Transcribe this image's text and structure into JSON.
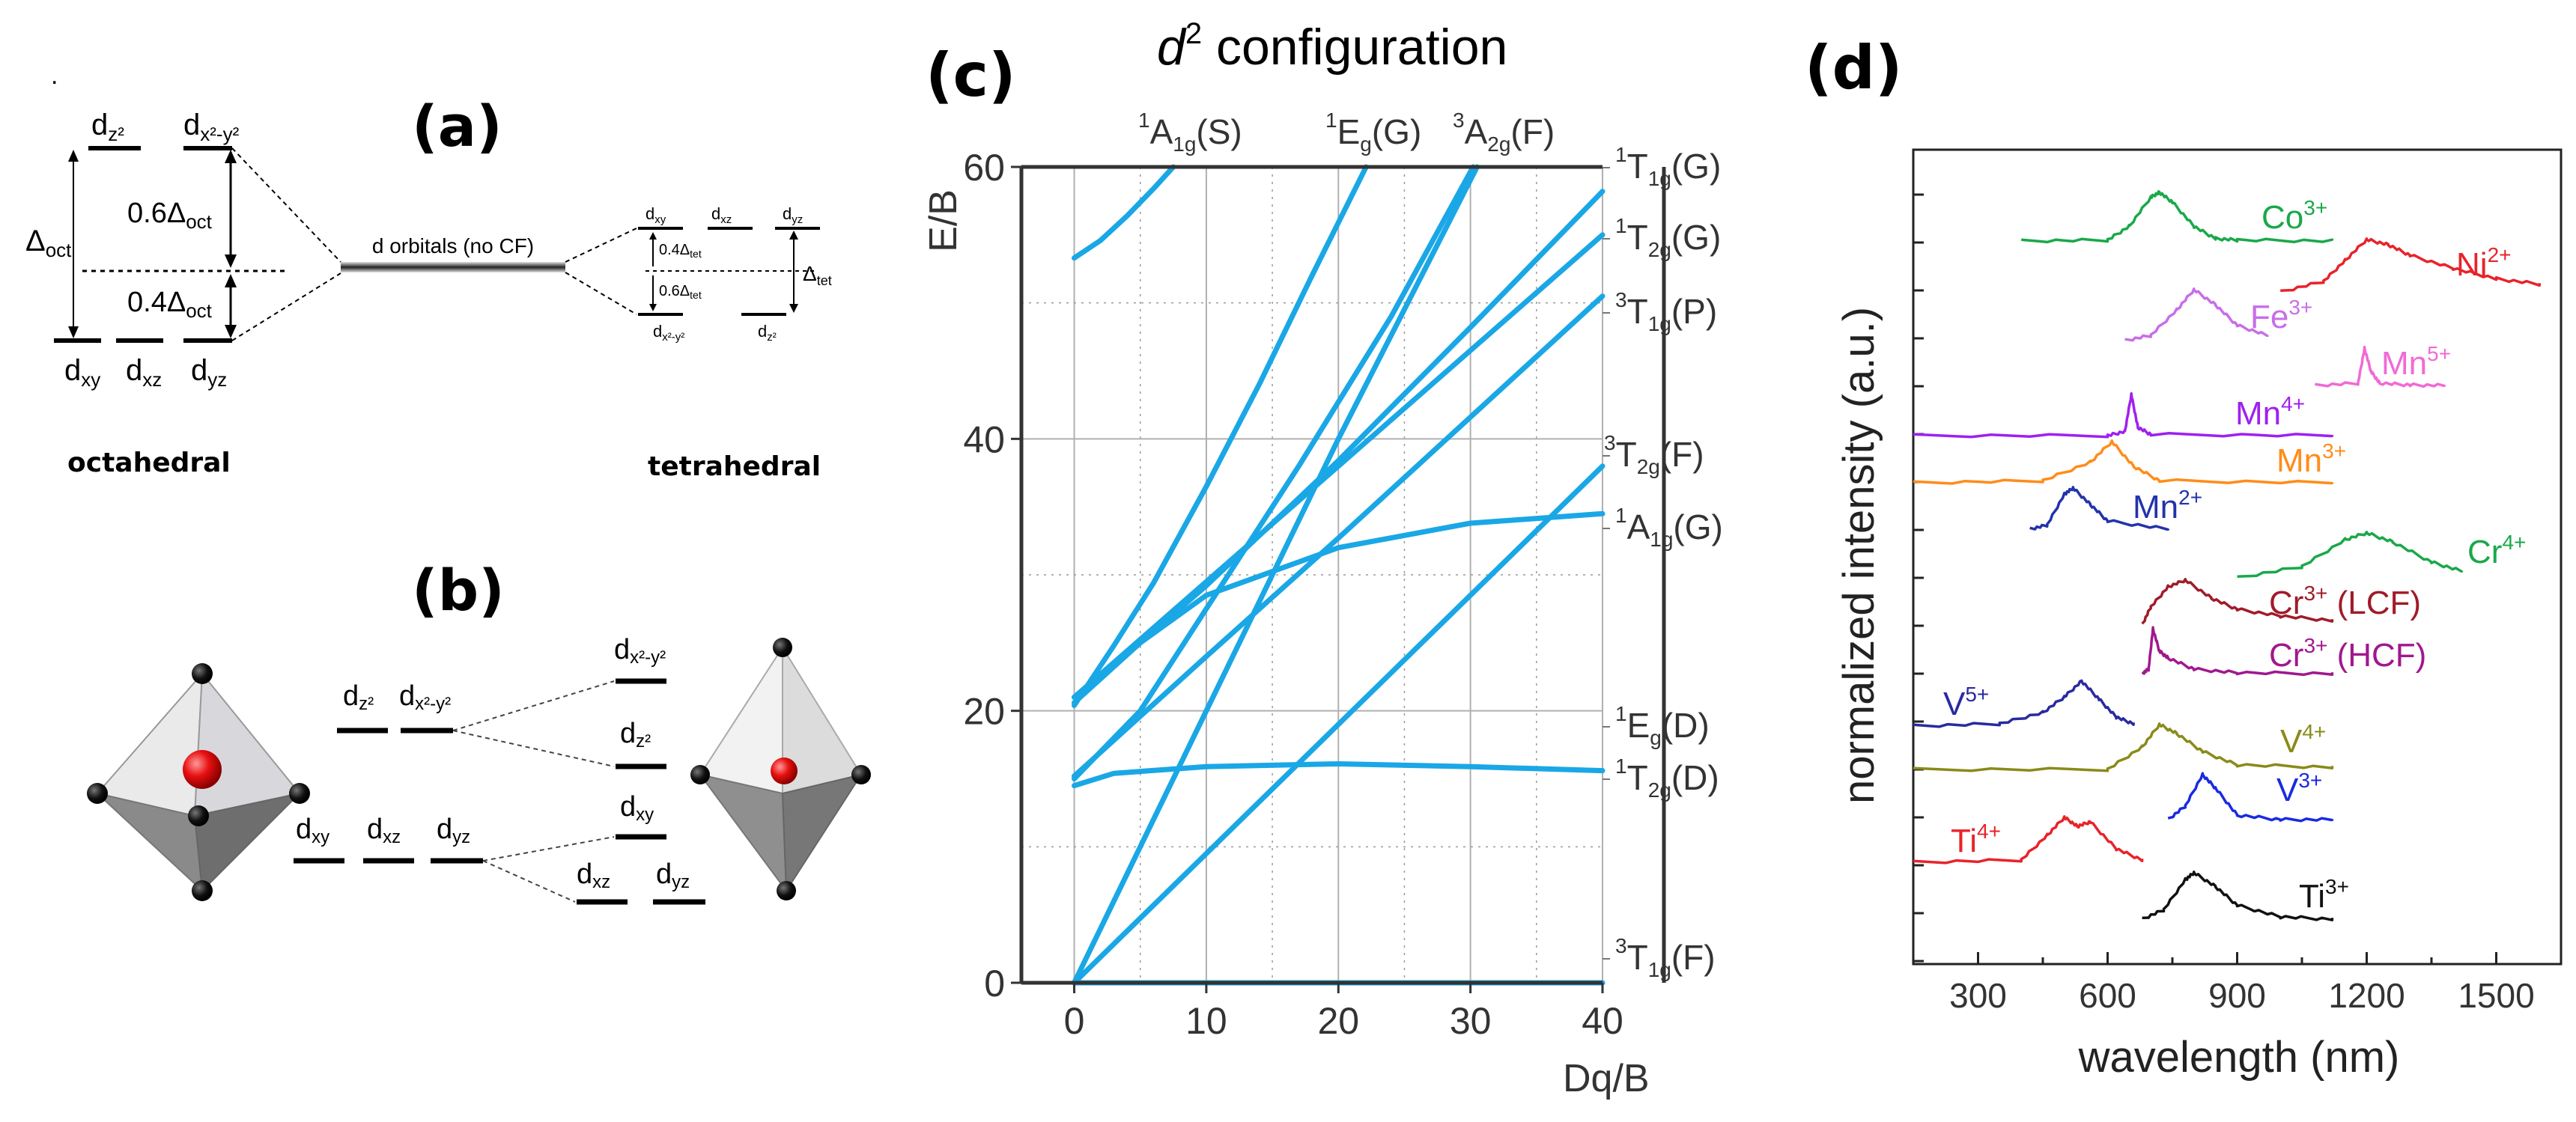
{
  "panel_a": {
    "label": "(a)",
    "oct_upper": [
      "d",
      "z²",
      "d",
      "x²-y²"
    ],
    "oct_lower": [
      "d",
      "xy",
      "d",
      "xz",
      "d",
      "yz"
    ],
    "delta_oct": [
      "Δ",
      "oct"
    ],
    "split_06": [
      "0.6Δ",
      "oct"
    ],
    "split_04": [
      "0.4Δ",
      "oct"
    ],
    "center_label": "d orbitals (no CF)",
    "tet_upper": [
      "d",
      "xy",
      "d",
      "xz",
      "d",
      "yz"
    ],
    "tet_lower": [
      "d",
      "x²-y²",
      "d",
      "z²"
    ],
    "tet_04": [
      "0.4Δ",
      "tet"
    ],
    "tet_06": [
      "0.6Δ",
      "tet"
    ],
    "delta_tet": [
      "Δ",
      "tet"
    ],
    "octahedral_label": "octahedral",
    "tetrahedral_label": "tetrahedral"
  },
  "panel_b": {
    "label": "(b)",
    "oct_upper": [
      "d",
      "z²",
      "d",
      "x²-y²"
    ],
    "oct_lower": [
      "d",
      "xy",
      "d",
      "xz",
      "d",
      "yz"
    ],
    "right_levels": [
      [
        "d",
        "x²-y²"
      ],
      [
        "d",
        "z²"
      ],
      [
        "d",
        "xy"
      ],
      [
        "d",
        "xz"
      ],
      [
        "d",
        "yz"
      ]
    ]
  },
  "panel_c": {
    "label": "(c)",
    "title_italic": "d",
    "title_sup": "2",
    "title_rest": " configuration"
  },
  "panel_d": {
    "label": "(d)",
    "series_colors": {
      "Co3+": "#1aa84a",
      "Ni2+": "#e8232a",
      "Fe3+": "#c86ee8",
      "Mn5+": "#f06ad6",
      "Mn4+": "#a020f0",
      "Mn3+": "#ff8c1a",
      "Mn2+": "#2233aa",
      "Cr4+": "#1aa84a",
      "Cr3+ (LCF)": "#a01b2a",
      "Cr3+ (HCF)": "#a0188e",
      "V5+": "#2a2aa0",
      "V4+": "#8a8a1a",
      "V3+": "#1a2ae0",
      "Ti4+": "#e8232a",
      "Ti3+": "#111111"
    }
  },
  "chart_data": [
    {
      "type": "line",
      "title": "d² configuration",
      "xlabel": "Dq/B",
      "ylabel": "E/B",
      "xlim": [
        -4,
        40
      ],
      "ylim": [
        0,
        60
      ],
      "xticks": [
        0,
        10,
        20,
        30,
        40
      ],
      "yticks": [
        0,
        20,
        40,
        60
      ],
      "grid": true,
      "top_labels": [
        {
          "main": "A",
          "sup": "1",
          "sub": "1g",
          "paren": "(S)"
        },
        {
          "main": "E",
          "sup": "1",
          "sub": "g",
          "paren": "(G)"
        },
        {
          "main": "A",
          "sup": "3",
          "sub": "2g",
          "paren": "(F)"
        }
      ],
      "right_labels": [
        {
          "main": "T",
          "sup": "1",
          "sub": "1g",
          "paren": "(G)"
        },
        {
          "main": "T",
          "sup": "1",
          "sub": "2g",
          "paren": "(G)"
        },
        {
          "main": "T",
          "sup": "3",
          "sub": "1g",
          "paren": "(P)"
        },
        {
          "main": "T",
          "sup": "3",
          "sub": "2g",
          "paren": "(F)"
        },
        {
          "main": "A",
          "sup": "1",
          "sub": "1g",
          "paren": "(G)"
        },
        {
          "main": "E",
          "sup": "1",
          "sub": "g",
          "paren": "(D)"
        },
        {
          "main": "T",
          "sup": "1",
          "sub": "2g",
          "paren": "(D)"
        },
        {
          "main": "T",
          "sup": "3",
          "sub": "1g",
          "paren": "(F)"
        }
      ],
      "series": [
        {
          "name": "3T1g(F)",
          "x": [
            0,
            40
          ],
          "y": [
            0,
            0
          ]
        },
        {
          "name": "3T2g(F)",
          "x": [
            0,
            40
          ],
          "y": [
            0,
            38
          ]
        },
        {
          "name": "3A2g(F)",
          "x": [
            0,
            10,
            20,
            30.5
          ],
          "y": [
            0,
            20,
            40,
            60
          ]
        },
        {
          "name": "1T2g(D)",
          "x": [
            0,
            3,
            10,
            20,
            30,
            40
          ],
          "y": [
            14.5,
            15.4,
            15.9,
            16.1,
            15.9,
            15.6
          ]
        },
        {
          "name": "1Eg(D)",
          "x": [
            0,
            5,
            10,
            17,
            24,
            30.2
          ],
          "y": [
            15,
            20,
            27.5,
            38,
            49,
            60
          ]
        },
        {
          "name": "3T1g(P)",
          "x": [
            0,
            10,
            20,
            30,
            40
          ],
          "y": [
            15.2,
            24,
            32.7,
            41.6,
            50.5
          ]
        },
        {
          "name": "1T2g(G)",
          "x": [
            0,
            10,
            20,
            30,
            40
          ],
          "y": [
            21,
            29.5,
            38,
            46.5,
            55
          ]
        },
        {
          "name": "1A1g(G)",
          "x": [
            0,
            5,
            10,
            20,
            30,
            40
          ],
          "y": [
            21,
            25,
            28.5,
            32,
            33.8,
            34.5
          ]
        },
        {
          "name": "1Eg(G)",
          "x": [
            0,
            3,
            6,
            10,
            14,
            18,
            22.1
          ],
          "y": [
            20.4,
            24.8,
            29.4,
            36.5,
            44,
            52,
            60
          ]
        },
        {
          "name": "1T1g(G)",
          "x": [
            0,
            5,
            10,
            20,
            30,
            40
          ],
          "y": [
            20.6,
            25,
            29.2,
            38.4,
            48.2,
            58.2
          ]
        },
        {
          "name": "1A1g(S)",
          "x": [
            0,
            2,
            4,
            6,
            7.5
          ],
          "y": [
            53.3,
            54.6,
            56.4,
            58.4,
            60
          ]
        }
      ]
    },
    {
      "type": "line",
      "xlabel": "wavelength (nm)",
      "ylabel": "normalized intensity (a.u.)",
      "xlim": [
        150,
        1650
      ],
      "xticks": [
        300,
        600,
        900,
        1200,
        1500
      ],
      "series": [
        {
          "name": "Co",
          "sup": "3+",
          "x": [
            400,
            600,
            650,
            700,
            720,
            750,
            800,
            850,
            900,
            1120
          ],
          "y": [
            0,
            0.02,
            0.3,
            0.9,
            1,
            0.8,
            0.3,
            0.05,
            0.02,
            0
          ]
        },
        {
          "name": "Ni",
          "sup": "2+",
          "x": [
            1000,
            1100,
            1150,
            1200,
            1250,
            1300,
            1400,
            1500,
            1600
          ],
          "y": [
            0,
            0.2,
            0.6,
            1,
            0.9,
            0.7,
            0.45,
            0.25,
            0.15
          ]
        },
        {
          "name": "Fe",
          "sup": "3+",
          "x": [
            640,
            700,
            760,
            800,
            850,
            900,
            970
          ],
          "y": [
            0,
            0.1,
            0.6,
            1,
            0.7,
            0.3,
            0.1
          ]
        },
        {
          "name": "Mn",
          "sup": "5+",
          "x": [
            1080,
            1180,
            1195,
            1210,
            1230,
            1300,
            1380
          ],
          "y": [
            0,
            0.05,
            0.8,
            0.3,
            0.05,
            0.01,
            0
          ]
        },
        {
          "name": "Mn",
          "sup": "4+",
          "x": [
            150,
            600,
            640,
            655,
            670,
            700,
            1120
          ],
          "y": [
            0,
            0,
            0.1,
            1,
            0.2,
            0.03,
            0
          ]
        },
        {
          "name": "Mn",
          "sup": "3+",
          "x": [
            150,
            450,
            560,
            610,
            660,
            720,
            1120
          ],
          "y": [
            0,
            0.05,
            0.5,
            1,
            0.4,
            0.05,
            0
          ]
        },
        {
          "name": "Mn",
          "sup": "2+",
          "x": [
            420,
            460,
            500,
            520,
            560,
            600,
            740
          ],
          "y": [
            0,
            0.1,
            0.85,
            1,
            0.6,
            0.2,
            0
          ]
        },
        {
          "name": "Cr",
          "sup": "4+",
          "x": [
            900,
            1050,
            1150,
            1200,
            1260,
            1350,
            1420
          ],
          "y": [
            0,
            0.25,
            0.85,
            1,
            0.8,
            0.35,
            0.15
          ]
        },
        {
          "name": "Cr",
          "sup": "3+",
          "extra": "(LCF)",
          "x": [
            680,
            700,
            740,
            780,
            840,
            900,
            1000,
            1120
          ],
          "y": [
            0,
            0.4,
            0.85,
            1,
            0.6,
            0.35,
            0.2,
            0.1
          ]
        },
        {
          "name": "Cr",
          "sup": "3+",
          "extra": "(HCF)",
          "x": [
            680,
            695,
            705,
            720,
            740,
            800,
            900,
            1120
          ],
          "y": [
            0,
            0.1,
            1,
            0.5,
            0.35,
            0.1,
            0.02,
            0
          ]
        },
        {
          "name": "V",
          "sup": "5+",
          "x": [
            150,
            350,
            450,
            500,
            540,
            580,
            620,
            660
          ],
          "y": [
            0,
            0.05,
            0.3,
            0.65,
            1,
            0.6,
            0.2,
            0.05
          ]
        },
        {
          "name": "V",
          "sup": "4+",
          "x": [
            150,
            600,
            680,
            720,
            760,
            820,
            900,
            1120
          ],
          "y": [
            0,
            0,
            0.5,
            1,
            0.8,
            0.4,
            0.1,
            0.05
          ]
        },
        {
          "name": "V",
          "sup": "3+",
          "x": [
            740,
            780,
            820,
            850,
            900,
            1000,
            1120
          ],
          "y": [
            0,
            0.3,
            1,
            0.7,
            0.1,
            0,
            0
          ]
        },
        {
          "name": "Ti",
          "sup": "4+",
          "x": [
            150,
            400,
            460,
            500,
            530,
            560,
            620,
            680
          ],
          "y": [
            0,
            0.05,
            0.6,
            1,
            0.8,
            0.9,
            0.3,
            0.05
          ]
        },
        {
          "name": "Ti",
          "sup": "3+",
          "x": [
            680,
            730,
            780,
            800,
            850,
            900,
            1000,
            1120
          ],
          "y": [
            0,
            0.2,
            0.85,
            1,
            0.7,
            0.3,
            0.05,
            0
          ]
        }
      ]
    }
  ]
}
